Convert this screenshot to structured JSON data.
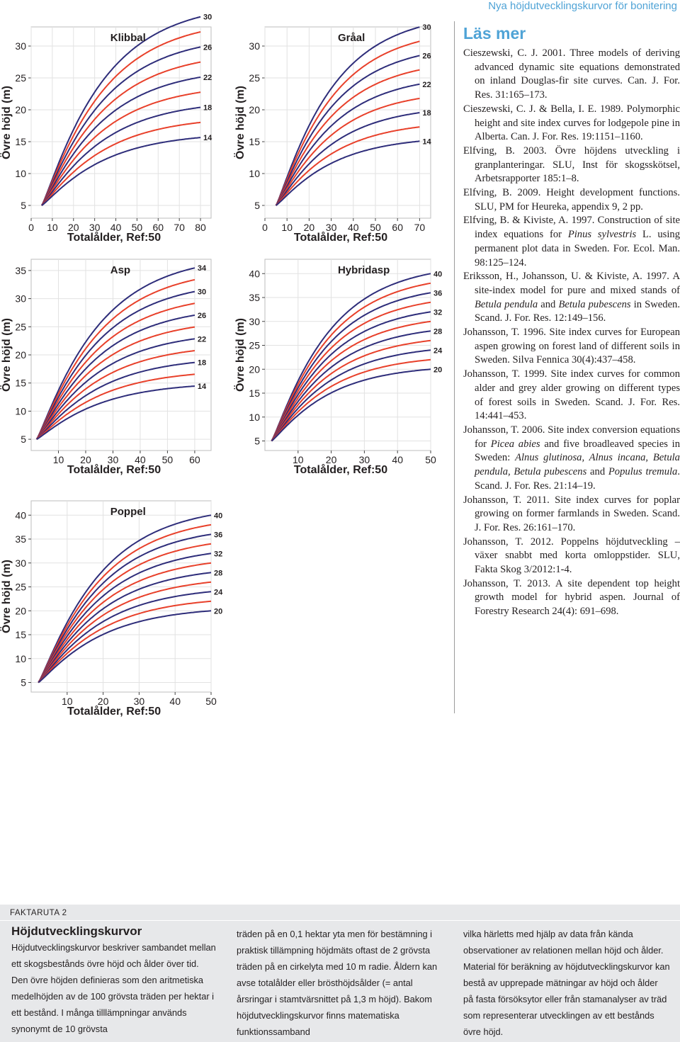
{
  "running_head": "Nya höjdutvecklingskurvor för bonitering",
  "chart_data": [
    {
      "type": "line",
      "title": "Klibbal",
      "xlabel": "Totalålder, Ref:50",
      "ylabel": "Övre höjd (m)",
      "xlim": [
        0,
        85
      ],
      "ylim": [
        3,
        33
      ],
      "xticks": [
        0,
        10,
        20,
        30,
        40,
        50,
        60,
        70,
        80
      ],
      "yticks": [
        5,
        10,
        15,
        20,
        25,
        30
      ],
      "curve_start_age": 5,
      "curve_end_age": 80,
      "reference_age": 50,
      "labeled_site_indices": [
        30,
        26,
        22,
        18,
        14
      ],
      "curve_colors": [
        "#2e2d7a",
        "#e8402a"
      ],
      "series": [
        {
          "name": "30",
          "site_index": 30,
          "x": [
            5,
            50,
            80
          ],
          "y": [
            5,
            30,
            33
          ]
        },
        {
          "name": "28",
          "site_index": 28,
          "x": [
            5,
            50,
            80
          ],
          "y": [
            5,
            28,
            31
          ]
        },
        {
          "name": "26",
          "site_index": 26,
          "x": [
            5,
            50,
            80
          ],
          "y": [
            5,
            26,
            28.9
          ]
        },
        {
          "name": "24",
          "site_index": 24,
          "x": [
            5,
            50,
            80
          ],
          "y": [
            5,
            24,
            26.8
          ]
        },
        {
          "name": "22",
          "site_index": 22,
          "x": [
            5,
            50,
            80
          ],
          "y": [
            5,
            22,
            24.6
          ]
        },
        {
          "name": "20",
          "site_index": 20,
          "x": [
            5,
            50,
            80
          ],
          "y": [
            5,
            20,
            22.4
          ]
        },
        {
          "name": "18",
          "site_index": 18,
          "x": [
            5,
            50,
            80
          ],
          "y": [
            5,
            18,
            20.3
          ]
        },
        {
          "name": "16",
          "site_index": 16,
          "x": [
            5,
            50,
            80
          ],
          "y": [
            5,
            16,
            18.1
          ]
        },
        {
          "name": "14",
          "site_index": 14,
          "x": [
            5,
            50,
            80
          ],
          "y": [
            5,
            14,
            15.8
          ]
        }
      ]
    },
    {
      "type": "line",
      "title": "Gråal",
      "xlabel": "Totalålder, Ref:50",
      "ylabel": "Övre höjd (m)",
      "xlim": [
        0,
        75
      ],
      "ylim": [
        3,
        33
      ],
      "xticks": [
        0,
        10,
        20,
        30,
        40,
        50,
        60,
        70
      ],
      "yticks": [
        5,
        10,
        15,
        20,
        25,
        30
      ],
      "curve_start_age": 5,
      "curve_end_age": 70,
      "reference_age": 50,
      "labeled_site_indices": [
        30,
        26,
        22,
        18,
        14
      ],
      "curve_colors": [
        "#2e2d7a",
        "#e8402a"
      ],
      "series": [
        {
          "name": "30",
          "site_index": 30,
          "x": [
            5,
            50,
            70
          ],
          "y": [
            5,
            30,
            33
          ]
        },
        {
          "name": "28",
          "site_index": 28,
          "x": [
            5,
            50,
            70
          ],
          "y": [
            5,
            28,
            30.6
          ]
        },
        {
          "name": "26",
          "site_index": 26,
          "x": [
            5,
            50,
            70
          ],
          "y": [
            5,
            26,
            28.1
          ]
        },
        {
          "name": "24",
          "site_index": 24,
          "x": [
            5,
            50,
            70
          ],
          "y": [
            5,
            24,
            25.9
          ]
        },
        {
          "name": "22",
          "site_index": 22,
          "x": [
            5,
            50,
            70
          ],
          "y": [
            5,
            22,
            23.7
          ]
        },
        {
          "name": "20",
          "site_index": 20,
          "x": [
            5,
            50,
            70
          ],
          "y": [
            5,
            20,
            21.5
          ]
        },
        {
          "name": "18",
          "site_index": 18,
          "x": [
            5,
            50,
            70
          ],
          "y": [
            5,
            18,
            19.3
          ]
        },
        {
          "name": "16",
          "site_index": 16,
          "x": [
            5,
            50,
            70
          ],
          "y": [
            5,
            16,
            17.1
          ]
        },
        {
          "name": "14",
          "site_index": 14,
          "x": [
            5,
            50,
            70
          ],
          "y": [
            5,
            14,
            14.9
          ]
        }
      ]
    },
    {
      "type": "line",
      "title": "Asp",
      "xlabel": "Totalålder, Ref:50",
      "ylabel": "Övre höjd (m)",
      "xlim": [
        0,
        66
      ],
      "ylim": [
        3,
        37
      ],
      "xticks": [
        10,
        20,
        30,
        40,
        50,
        60
      ],
      "yticks": [
        5,
        10,
        15,
        20,
        25,
        30,
        35
      ],
      "curve_start_age": 2,
      "curve_end_age": 60,
      "reference_age": 50,
      "labeled_site_indices": [
        34,
        30,
        26,
        22,
        18,
        14
      ],
      "curve_colors": [
        "#2e2d7a",
        "#e8402a"
      ],
      "series": [
        {
          "name": "34",
          "site_index": 34,
          "x": [
            2,
            50,
            60
          ],
          "y": [
            5,
            34,
            37
          ]
        },
        {
          "name": "32",
          "site_index": 32,
          "x": [
            2,
            50,
            60
          ],
          "y": [
            5,
            32,
            34.7
          ]
        },
        {
          "name": "30",
          "site_index": 30,
          "x": [
            2,
            50,
            60
          ],
          "y": [
            5,
            30,
            32.4
          ]
        },
        {
          "name": "28",
          "site_index": 28,
          "x": [
            2,
            50,
            60
          ],
          "y": [
            5,
            28,
            30.1
          ]
        },
        {
          "name": "26",
          "site_index": 26,
          "x": [
            2,
            50,
            60
          ],
          "y": [
            5,
            26,
            27.9
          ]
        },
        {
          "name": "24",
          "site_index": 24,
          "x": [
            2,
            50,
            60
          ],
          "y": [
            5,
            24,
            25.7
          ]
        },
        {
          "name": "22",
          "site_index": 22,
          "x": [
            2,
            50,
            60
          ],
          "y": [
            5,
            22,
            23.4
          ]
        },
        {
          "name": "20",
          "site_index": 20,
          "x": [
            2,
            50,
            60
          ],
          "y": [
            5,
            20,
            21.2
          ]
        },
        {
          "name": "18",
          "site_index": 18,
          "x": [
            2,
            50,
            60
          ],
          "y": [
            5,
            18,
            19.1
          ]
        },
        {
          "name": "16",
          "site_index": 16,
          "x": [
            2,
            50,
            60
          ],
          "y": [
            5,
            16,
            16.9
          ]
        },
        {
          "name": "14",
          "site_index": 14,
          "x": [
            2,
            50,
            60
          ],
          "y": [
            5,
            14,
            14.7
          ]
        }
      ]
    },
    {
      "type": "line",
      "title": "Hybridasp",
      "xlabel": "Totalålder, Ref:50",
      "ylabel": "Övre höjd (m)",
      "xlim": [
        0,
        50
      ],
      "ylim": [
        3,
        43
      ],
      "xticks": [
        10,
        20,
        30,
        40,
        50
      ],
      "yticks": [
        5,
        10,
        15,
        20,
        25,
        30,
        35,
        40
      ],
      "curve_start_age": 2,
      "curve_end_age": 50,
      "reference_age": 50,
      "labeled_site_indices": [
        40,
        36,
        32,
        28,
        24,
        20
      ],
      "curve_colors": [
        "#2e2d7a",
        "#e8402a"
      ],
      "series": [
        {
          "name": "40",
          "site_index": 40,
          "x": [
            2,
            50
          ],
          "y": [
            5,
            40
          ]
        },
        {
          "name": "38",
          "site_index": 38,
          "x": [
            2,
            50
          ],
          "y": [
            5,
            38
          ]
        },
        {
          "name": "36",
          "site_index": 36,
          "x": [
            2,
            50
          ],
          "y": [
            5,
            36
          ]
        },
        {
          "name": "34",
          "site_index": 34,
          "x": [
            2,
            50
          ],
          "y": [
            5,
            34
          ]
        },
        {
          "name": "32",
          "site_index": 32,
          "x": [
            2,
            50
          ],
          "y": [
            5,
            32
          ]
        },
        {
          "name": "30",
          "site_index": 30,
          "x": [
            2,
            50
          ],
          "y": [
            5,
            30
          ]
        },
        {
          "name": "28",
          "site_index": 28,
          "x": [
            2,
            50
          ],
          "y": [
            5,
            28
          ]
        },
        {
          "name": "26",
          "site_index": 26,
          "x": [
            2,
            50
          ],
          "y": [
            5,
            26
          ]
        },
        {
          "name": "24",
          "site_index": 24,
          "x": [
            2,
            50
          ],
          "y": [
            5,
            24
          ]
        },
        {
          "name": "22",
          "site_index": 22,
          "x": [
            2,
            50
          ],
          "y": [
            5,
            22
          ]
        },
        {
          "name": "20",
          "site_index": 20,
          "x": [
            2,
            50
          ],
          "y": [
            5,
            20
          ]
        }
      ]
    },
    {
      "type": "line",
      "title": "Poppel",
      "xlabel": "Totalålder, Ref:50",
      "ylabel": "Övre höjd (m)",
      "xlim": [
        0,
        50
      ],
      "ylim": [
        3,
        43
      ],
      "xticks": [
        10,
        20,
        30,
        40,
        50
      ],
      "yticks": [
        5,
        10,
        15,
        20,
        25,
        30,
        35,
        40
      ],
      "curve_start_age": 2,
      "curve_end_age": 50,
      "reference_age": 50,
      "labeled_site_indices": [
        40,
        36,
        32,
        28,
        24,
        20
      ],
      "curve_colors": [
        "#2e2d7a",
        "#e8402a"
      ],
      "series": [
        {
          "name": "40",
          "site_index": 40,
          "x": [
            2,
            50
          ],
          "y": [
            5,
            40
          ]
        },
        {
          "name": "38",
          "site_index": 38,
          "x": [
            2,
            50
          ],
          "y": [
            5,
            38
          ]
        },
        {
          "name": "36",
          "site_index": 36,
          "x": [
            2,
            50
          ],
          "y": [
            5,
            36
          ]
        },
        {
          "name": "34",
          "site_index": 34,
          "x": [
            2,
            50
          ],
          "y": [
            5,
            34
          ]
        },
        {
          "name": "32",
          "site_index": 32,
          "x": [
            2,
            50
          ],
          "y": [
            5,
            32
          ]
        },
        {
          "name": "30",
          "site_index": 30,
          "x": [
            2,
            50
          ],
          "y": [
            5,
            30
          ]
        },
        {
          "name": "28",
          "site_index": 28,
          "x": [
            2,
            50
          ],
          "y": [
            5,
            28
          ]
        },
        {
          "name": "26",
          "site_index": 26,
          "x": [
            2,
            50
          ],
          "y": [
            5,
            26
          ]
        },
        {
          "name": "24",
          "site_index": 24,
          "x": [
            2,
            50
          ],
          "y": [
            5,
            24
          ]
        },
        {
          "name": "22",
          "site_index": 22,
          "x": [
            2,
            50
          ],
          "y": [
            5,
            22
          ]
        },
        {
          "name": "20",
          "site_index": 20,
          "x": [
            2,
            50
          ],
          "y": [
            5,
            20
          ]
        }
      ]
    }
  ],
  "reading": {
    "heading": "Läs mer",
    "references": [
      [
        {
          "t": "Cieszewski, C. J. 2001. Three models of deriving advanced dynamic site equations demonstrated on inland Douglas-fir site curves. Can. J. For. Res. 31:165–173."
        }
      ],
      [
        {
          "t": "Cieszewski, C. J. & Bella, I. E. 1989. Polymorphic height and site index curves for lodgepole pine in Alberta. Can. J. For. Res. 19:1151–1160."
        }
      ],
      [
        {
          "t": "Elfving, B. 2003. Övre höjdens utveckling i granplanteringar. SLU, Inst för skogsskötsel, Arbetsrapporter 185:1–8."
        }
      ],
      [
        {
          "t": "Elfving, B. 2009. Height development functions. SLU, PM for Heureka, appendix 9, 2 pp."
        }
      ],
      [
        {
          "t": "Elfving, B. & Kiviste, A. 1997. Construction of site index equations for "
        },
        {
          "t": "Pinus sylvestris",
          "i": true
        },
        {
          "t": " L. using permanent plot data in Sweden. For. Ecol. Man. 98:125–124."
        }
      ],
      [
        {
          "t": "Eriksson, H., Johansson, U. & Kiviste, A. 1997. A site-index model for pure and mixed stands of "
        },
        {
          "t": "Betula pendula",
          "i": true
        },
        {
          "t": " and "
        },
        {
          "t": "Betula pubescens",
          "i": true
        },
        {
          "t": " in Sweden. Scand. J. For. Res. 12:149–156."
        }
      ],
      [
        {
          "t": "Johansson, T. 1996. Site index curves for European aspen growing on forest land of different soils in Sweden. Silva Fennica 30(4):437–458."
        }
      ],
      [
        {
          "t": "Johansson, T. 1999. Site index curves for common alder and grey alder growing on different types of forest soils in Sweden. Scand. J. For. Res. 14:441–453."
        }
      ],
      [
        {
          "t": "Johansson, T. 2006. Site index conversion equations for "
        },
        {
          "t": "Picea abies",
          "i": true
        },
        {
          "t": " and five broadleaved species in Sweden: "
        },
        {
          "t": "Alnus glutinosa, Alnus incana, Betula pendula, Betula pubescens",
          "i": true
        },
        {
          "t": " and "
        },
        {
          "t": "Populus tremula",
          "i": true
        },
        {
          "t": ". Scand. J. For. Res. 21:14–19."
        }
      ],
      [
        {
          "t": "Johansson, T. 2011. Site index curves for poplar growing on former farmlands in Sweden. Scand. J. For. Res. 26:161–170."
        }
      ],
      [
        {
          "t": "Johansson, T. 2012. Poppelns höjdutveckling – växer snabbt med korta omloppstider. SLU, Fakta Skog 3/2012:1-4."
        }
      ],
      [
        {
          "t": "Johansson, T. 2013. A site dependent top height growth model for hybrid aspen. Journal of  Forestry Research 24(4): 691–698."
        }
      ]
    ]
  },
  "fakta": {
    "tag": "FAKTARUTA 2",
    "title": "Höjdutvecklingskurvor",
    "col1": "Höjdutvecklingskurvor beskriver sambandet mellan ett skogsbestånds övre höjd och ålder över tid. Den övre höjden definieras som den aritmetiska medelhöjden av de 100 grövsta träden per hektar i ett bestånd. I många tilllämpningar används synonymt de 10 grövsta",
    "col2": "träden på en 0,1 hektar yta men för bestämning i praktisk tillämpning höjdmäts oftast de 2 grövsta träden på en cirkelyta med 10 m radie. Åldern kan avse totalålder eller bröst­höjdsålder (= antal årsringar i stamtvärsnittet på 1,3 m höjd). Bakom höjdutvecklingskurvor finns matematiska funktionssamband",
    "col3": "vilka härletts med hjälp av data från kända observationer av relationen mellan höjd och ålder. Material för beräkning av höjdutveck­lingskurvor kan bestå av upprepade mätningar av höjd och ålder på fasta försöksytor eller från stamanalyser av träd som representerar utvecklingen av ett bestånds övre höjd."
  }
}
